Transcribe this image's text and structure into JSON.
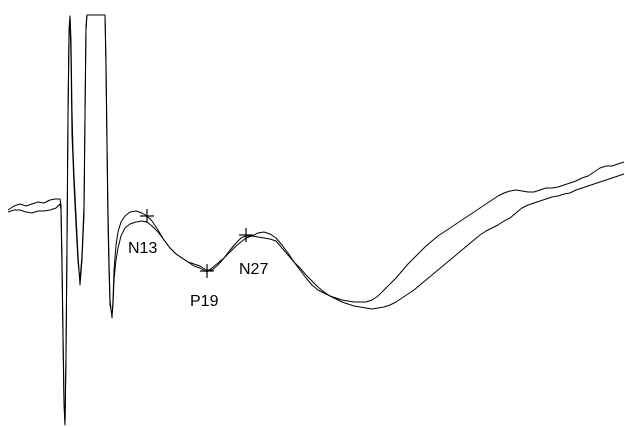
{
  "chart_data": {
    "type": "line",
    "title": "",
    "xlabel": "",
    "ylabel": "",
    "grid": false,
    "legend": "none",
    "axes_visible": false,
    "line_color": "#000000",
    "markers": [
      {
        "label": "N13",
        "symbol": "cross"
      },
      {
        "label": "P19",
        "symbol": "cross"
      },
      {
        "label": "N27",
        "symbol": "cross"
      }
    ]
  }
}
